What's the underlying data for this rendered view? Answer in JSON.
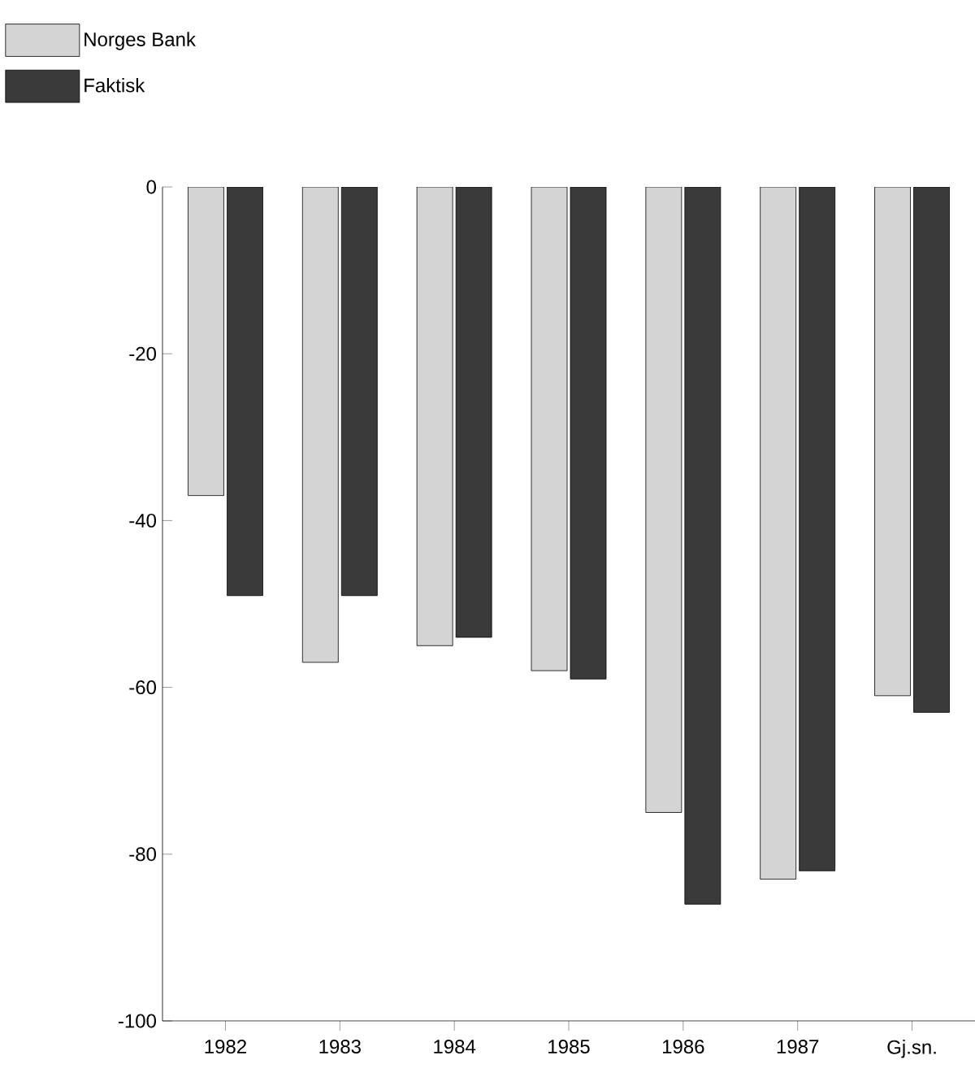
{
  "chart_data": {
    "type": "bar",
    "categories": [
      "1982",
      "1983",
      "1984",
      "1985",
      "1986",
      "1987",
      "Gj.sn."
    ],
    "series": [
      {
        "name": "Norges Bank",
        "color": "#d4d4d4",
        "values": [
          -37,
          -57,
          -55,
          -58,
          -75,
          -83,
          -61
        ]
      },
      {
        "name": "Faktisk",
        "color": "#3a3a3a",
        "values": [
          -49,
          -49,
          -54,
          -59,
          -86,
          -82,
          -63
        ]
      }
    ],
    "ylim": [
      -100,
      0
    ],
    "yticks": [
      -100,
      -80,
      -60,
      -40,
      -20,
      0
    ],
    "grid": false,
    "legend": "top left"
  }
}
